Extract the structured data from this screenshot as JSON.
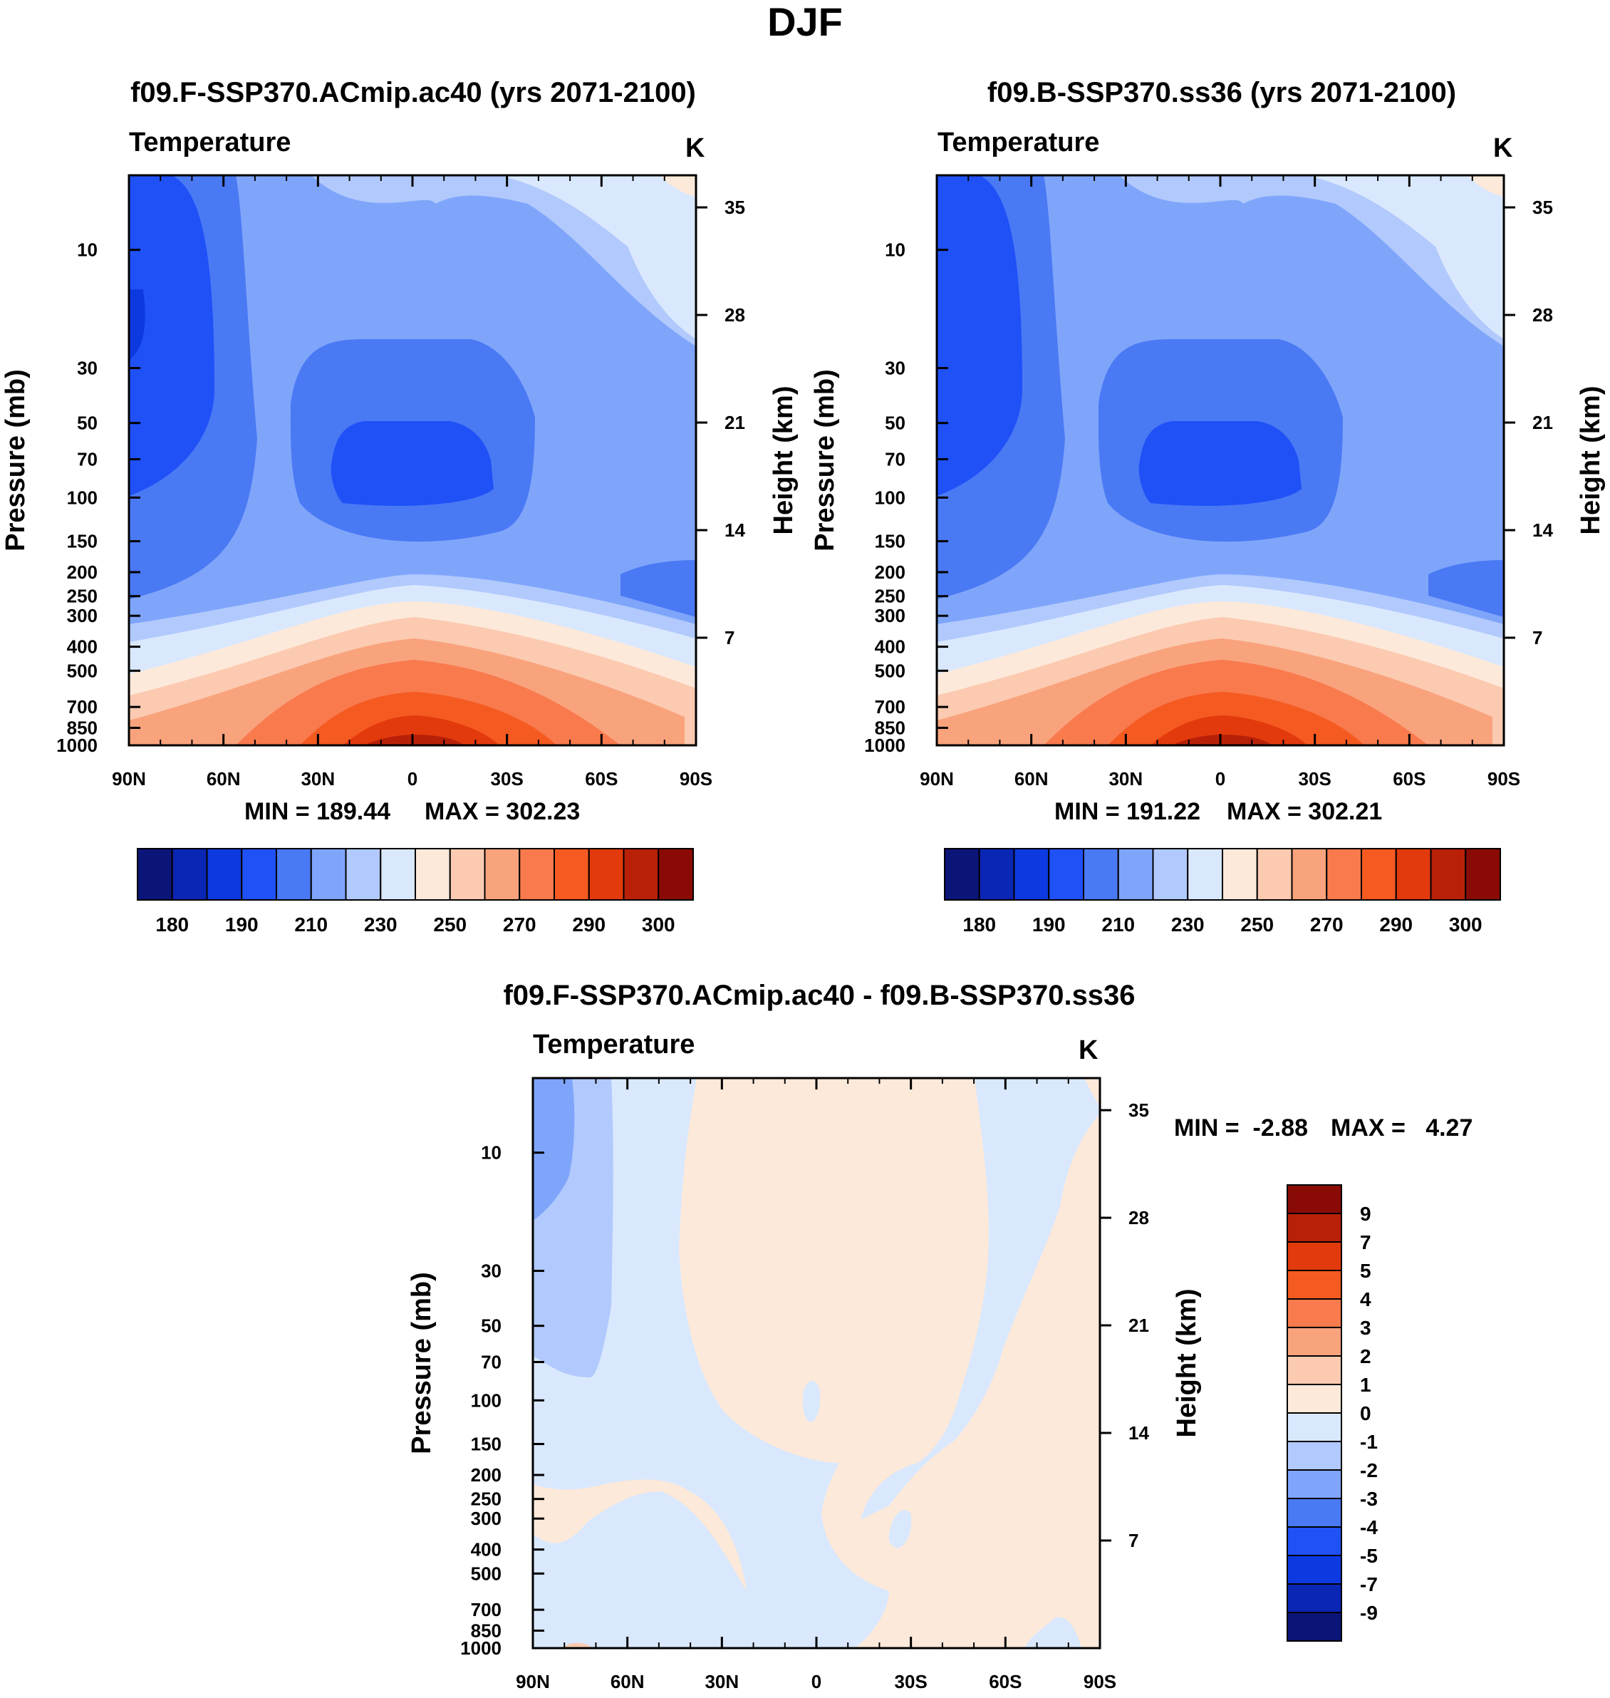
{
  "figure_title": "DJF",
  "chart_data": [
    {
      "type": "contour",
      "id": "p1",
      "title": "f09.F-SSP370.ACmip.ac40 (yrs 2071-2100)",
      "variable": "Temperature",
      "units": "K",
      "xlabel": "",
      "ylabel": "Pressure (mb)",
      "ylabel_right": "Height (km)",
      "x_ticks": [
        "90N",
        "60N",
        "30N",
        "0",
        "30S",
        "60S",
        "90S"
      ],
      "x_range": [
        90,
        -90
      ],
      "pressure_ticks": [
        10,
        30,
        50,
        70,
        100,
        150,
        200,
        250,
        300,
        400,
        500,
        700,
        850,
        1000
      ],
      "height_ticks": [
        35,
        28,
        21,
        14,
        7
      ],
      "min_label": "MIN = 189.44",
      "max_label": "MAX = 302.23",
      "min": 189.44,
      "max": 302.23,
      "levels": [
        180,
        185,
        190,
        200,
        210,
        220,
        230,
        240,
        250,
        260,
        270,
        280,
        290,
        295,
        300
      ],
      "colorbar_labels": [
        "180",
        "190",
        "210",
        "230",
        "250",
        "270",
        "290",
        "300"
      ]
    },
    {
      "type": "contour",
      "id": "p2",
      "title": "f09.B-SSP370.ss36 (yrs 2071-2100)",
      "variable": "Temperature",
      "units": "K",
      "xlabel": "",
      "ylabel": "Pressure (mb)",
      "ylabel_right": "Height (km)",
      "x_ticks": [
        "90N",
        "60N",
        "30N",
        "0",
        "30S",
        "60S",
        "90S"
      ],
      "x_range": [
        90,
        -90
      ],
      "pressure_ticks": [
        10,
        30,
        50,
        70,
        100,
        150,
        200,
        250,
        300,
        400,
        500,
        700,
        850,
        1000
      ],
      "height_ticks": [
        35,
        28,
        21,
        14,
        7
      ],
      "min_label": "MIN = 191.22",
      "max_label": "MAX = 302.21",
      "min": 191.22,
      "max": 302.21,
      "levels": [
        180,
        185,
        190,
        200,
        210,
        220,
        230,
        240,
        250,
        260,
        270,
        280,
        290,
        295,
        300
      ],
      "colorbar_labels": [
        "180",
        "190",
        "210",
        "230",
        "250",
        "270",
        "290",
        "300"
      ]
    },
    {
      "type": "contour",
      "id": "p3",
      "title": "f09.F-SSP370.ACmip.ac40 - f09.B-SSP370.ss36",
      "variable": "Temperature",
      "units": "K",
      "xlabel": "",
      "ylabel": "Pressure (mb)",
      "ylabel_right": "Height (km)",
      "x_ticks": [
        "90N",
        "60N",
        "30N",
        "0",
        "30S",
        "60S",
        "90S"
      ],
      "x_range": [
        90,
        -90
      ],
      "pressure_ticks": [
        10,
        30,
        50,
        70,
        100,
        150,
        200,
        250,
        300,
        400,
        500,
        700,
        850,
        1000
      ],
      "height_ticks": [
        35,
        28,
        21,
        14,
        7
      ],
      "min_label": "MIN =  -2.88",
      "max_label": "MAX =   4.27",
      "min": -2.88,
      "max": 4.27,
      "levels": [
        9,
        7,
        5,
        4,
        3,
        2,
        1,
        0,
        -1,
        -2,
        -3,
        -4,
        -5,
        -7,
        -9
      ],
      "colorbar_labels": [
        "9",
        "7",
        "5",
        "4",
        "3",
        "2",
        "1",
        "0",
        "-1",
        "-2",
        "-3",
        "-4",
        "-5",
        "-7",
        "-9"
      ]
    }
  ],
  "colormap": [
    "#0b1477",
    "#0a26b5",
    "#0d3ae0",
    "#1f51f7",
    "#4a79f4",
    "#7fa5fb",
    "#b1c9fc",
    "#d9e8fd",
    "#fde9da",
    "#fbcab1",
    "#f9a37d",
    "#f87a4d",
    "#f55a21",
    "#e23a0c",
    "#b82108",
    "#8a0b05"
  ],
  "diff_colormap": [
    "#8a0b05",
    "#b82108",
    "#e23a0c",
    "#f55a21",
    "#f87a4d",
    "#f9a37d",
    "#fbcab1",
    "#fde9da",
    "#d9e8fd",
    "#b1c9fc",
    "#7fa5fb",
    "#4a79f4",
    "#1f51f7",
    "#0d3ae0",
    "#0a26b5",
    "#0b1477"
  ]
}
